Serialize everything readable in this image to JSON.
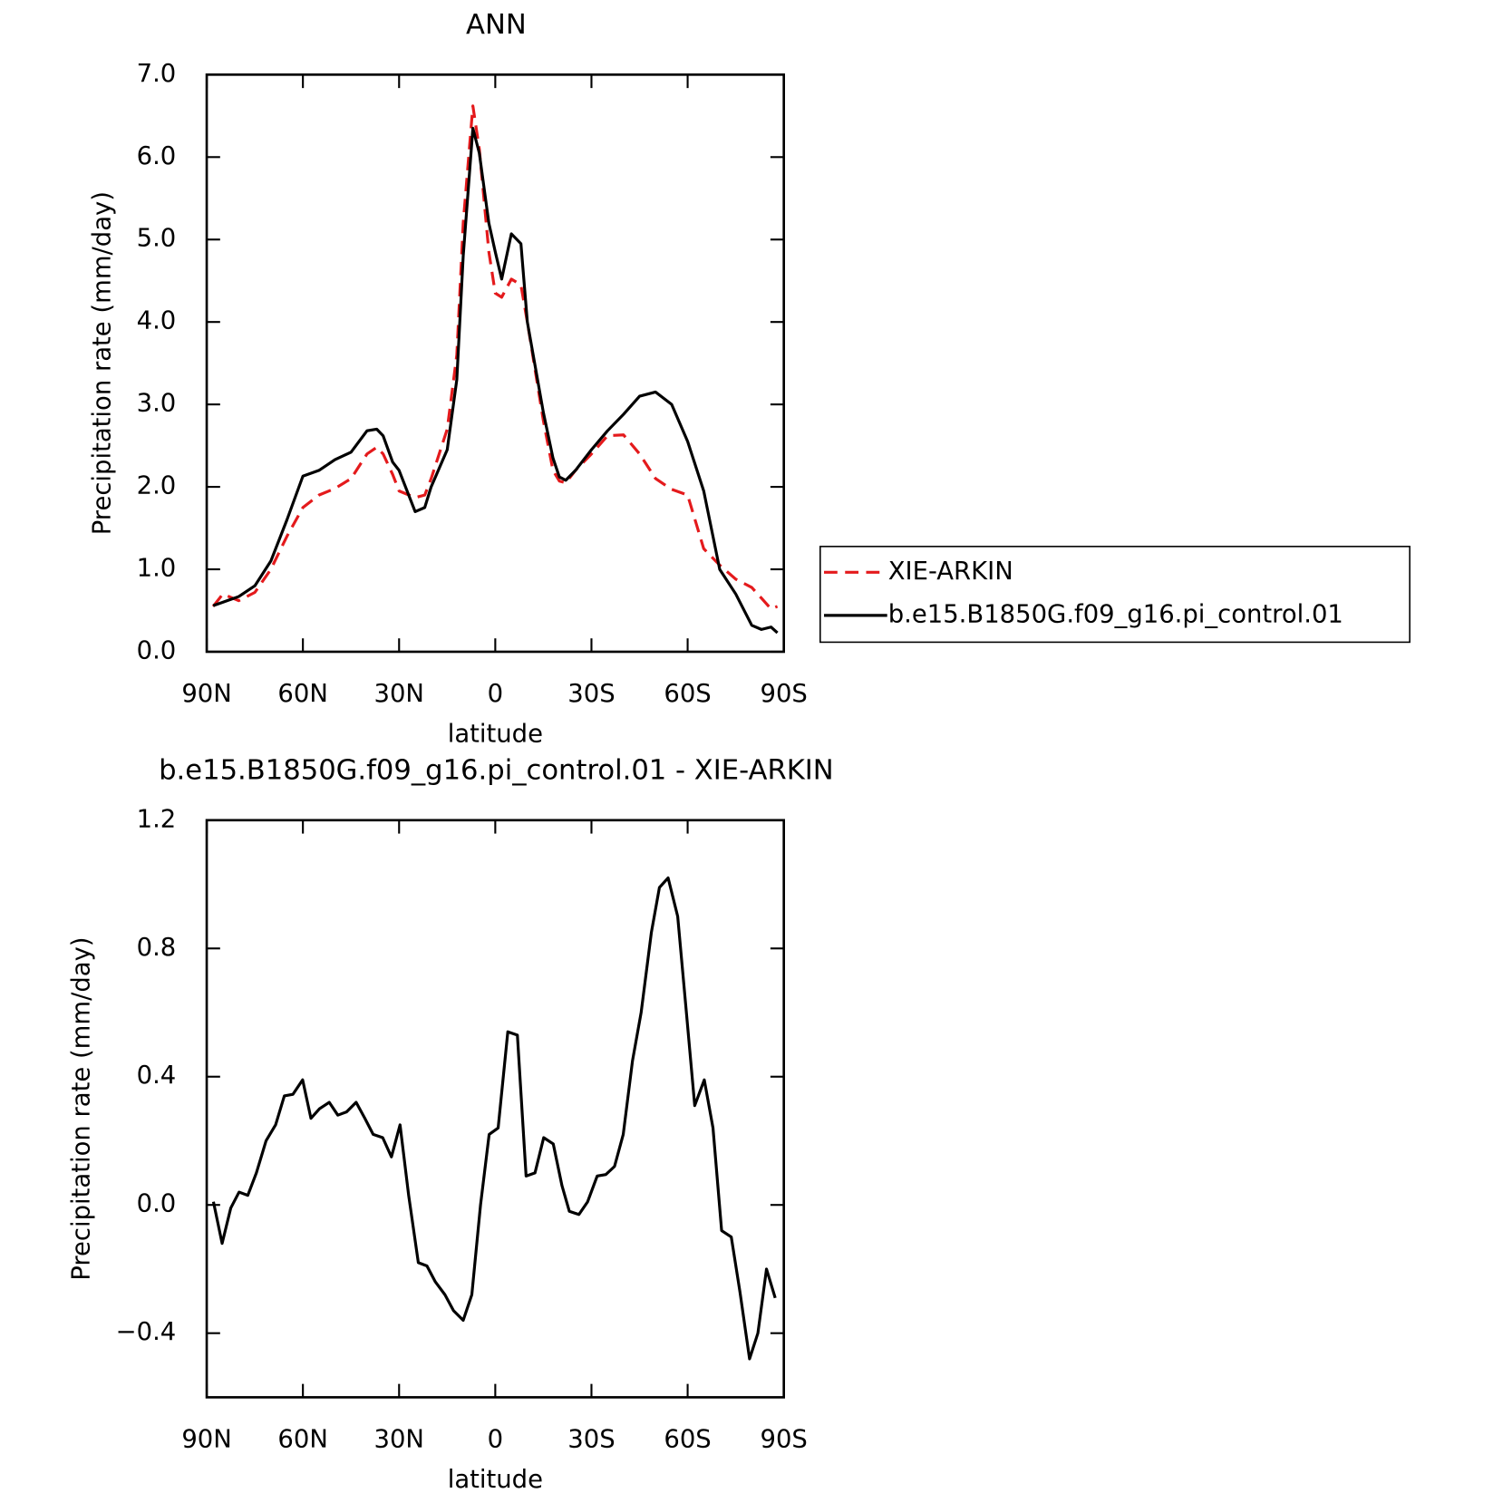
{
  "chart_data": [
    {
      "type": "line",
      "title": "ANN",
      "xlabel": "latitude",
      "ylabel": "Precipitation rate (mm/day)",
      "x": [
        88,
        85,
        80,
        75,
        70,
        65,
        60,
        55,
        50,
        45,
        40,
        37,
        35,
        32,
        30,
        25,
        22,
        20,
        15,
        12,
        10,
        7,
        5,
        2,
        0,
        -2,
        -5,
        -8,
        -10,
        -15,
        -18,
        -20,
        -22,
        -25,
        -30,
        -35,
        -40,
        -45,
        -50,
        -55,
        -60,
        -65,
        -70,
        -75,
        -80,
        -83,
        -86,
        -88
      ],
      "series": [
        {
          "name": "XIE-ARKIN",
          "color": "#e41a1c",
          "linestyle": "dashed",
          "values": [
            0.55,
            0.7,
            0.62,
            0.72,
            1.0,
            1.4,
            1.75,
            1.9,
            1.98,
            2.1,
            2.4,
            2.48,
            2.4,
            2.15,
            1.95,
            1.87,
            1.9,
            2.1,
            2.7,
            3.6,
            5.2,
            6.62,
            6.1,
            4.85,
            4.35,
            4.3,
            4.52,
            4.45,
            4.0,
            2.8,
            2.2,
            2.07,
            2.05,
            2.2,
            2.4,
            2.62,
            2.63,
            2.4,
            2.1,
            1.97,
            1.9,
            1.25,
            1.05,
            0.88,
            0.78,
            0.65,
            0.52,
            0.55
          ]
        },
        {
          "name": "b.e15.B1850G.f09_g16.pi_control.01",
          "color": "#000000",
          "linestyle": "solid",
          "values": [
            0.56,
            0.6,
            0.67,
            0.8,
            1.1,
            1.6,
            2.13,
            2.2,
            2.33,
            2.42,
            2.68,
            2.7,
            2.62,
            2.3,
            2.2,
            1.7,
            1.75,
            2.0,
            2.45,
            3.3,
            4.8,
            6.35,
            6.05,
            5.2,
            4.85,
            4.52,
            5.07,
            4.95,
            4.0,
            2.9,
            2.35,
            2.12,
            2.08,
            2.2,
            2.45,
            2.68,
            2.88,
            3.1,
            3.15,
            3.0,
            2.55,
            1.95,
            1.0,
            0.7,
            0.32,
            0.27,
            0.3,
            0.23
          ]
        }
      ],
      "xlim": [
        90,
        -90
      ],
      "xticks": [
        {
          "value": 90,
          "label": "90N"
        },
        {
          "value": 60,
          "label": "60N"
        },
        {
          "value": 30,
          "label": "30N"
        },
        0,
        {
          "value": -30,
          "label": "30S"
        },
        {
          "value": -60,
          "label": "60S"
        },
        {
          "value": -90,
          "label": "90S"
        }
      ],
      "ylim": [
        0,
        7
      ],
      "yticks": [
        {
          "value": 0,
          "label": "0.0"
        },
        {
          "value": 1,
          "label": "1.0"
        },
        {
          "value": 2,
          "label": "2.0"
        },
        {
          "value": 3,
          "label": "3.0"
        },
        {
          "value": 4,
          "label": "4.0"
        },
        {
          "value": 5,
          "label": "5.0"
        },
        {
          "value": 6,
          "label": "6.0"
        },
        {
          "value": 7,
          "label": "7.0"
        }
      ],
      "legend": "right"
    },
    {
      "type": "line",
      "title": "b.e15.B1850G.f09_g16.pi_control.01 - XIE-ARKIN",
      "xlabel": "latitude",
      "ylabel": "Precipitation rate (mm/day)",
      "x": [
        87.9,
        85.2,
        82.5,
        79.9,
        77.2,
        74.5,
        71.5,
        68.5,
        65.8,
        63.1,
        60.1,
        57.5,
        54.8,
        51.8,
        49.1,
        46.4,
        43.4,
        40.7,
        38.1,
        35.1,
        32.4,
        29.7,
        27.0,
        24.0,
        21.3,
        18.7,
        15.7,
        13.0,
        10.0,
        7.3,
        4.6,
        1.9,
        -0.9,
        -3.9,
        -6.9,
        -9.6,
        -12.4,
        -15.1,
        -18.1,
        -20.8,
        -23.1,
        -26.1,
        -28.8,
        -31.8,
        -34.5,
        -37.2,
        -39.9,
        -42.8,
        -45.5,
        -48.7,
        -51.2,
        -53.9,
        -56.9,
        -59.6,
        -62.2,
        -65.2,
        -67.9,
        -70.6,
        -73.6,
        -76.3,
        -79.3,
        -81.9,
        -84.6,
        -87.3
      ],
      "values": [
        0.01,
        -0.12,
        -0.01,
        0.04,
        0.03,
        0.1,
        0.2,
        0.25,
        0.34,
        0.345,
        0.39,
        0.27,
        0.3,
        0.32,
        0.28,
        0.29,
        0.32,
        0.27,
        0.22,
        0.21,
        0.15,
        0.25,
        0.03,
        -0.18,
        -0.19,
        -0.24,
        -0.28,
        -0.33,
        -0.36,
        -0.28,
        0.0,
        0.22,
        0.24,
        0.54,
        0.53,
        0.09,
        0.1,
        0.21,
        0.19,
        0.06,
        -0.02,
        -0.03,
        0.01,
        0.09,
        0.095,
        0.12,
        0.22,
        0.45,
        0.6,
        0.85,
        0.99,
        1.02,
        0.9,
        0.6,
        0.31,
        0.39,
        0.24,
        -0.08,
        -0.1,
        -0.27,
        -0.48,
        -0.4,
        -0.2,
        -0.29
      ],
      "color": "#000000",
      "linestyle": "solid",
      "xlim": [
        90,
        -90
      ],
      "xticks": [
        {
          "value": 90,
          "label": "90N"
        },
        {
          "value": 60,
          "label": "60N"
        },
        {
          "value": 30,
          "label": "30N"
        },
        0,
        {
          "value": -30,
          "label": "30S"
        },
        {
          "value": -60,
          "label": "60S"
        },
        {
          "value": -90,
          "label": "90S"
        }
      ],
      "ylim": [
        -0.6,
        1.2
      ],
      "yticks": [
        {
          "value": -0.4,
          "label": "−0.4"
        },
        {
          "value": 0,
          "label": "0.0"
        },
        0.4,
        0.8,
        1.2
      ]
    }
  ]
}
